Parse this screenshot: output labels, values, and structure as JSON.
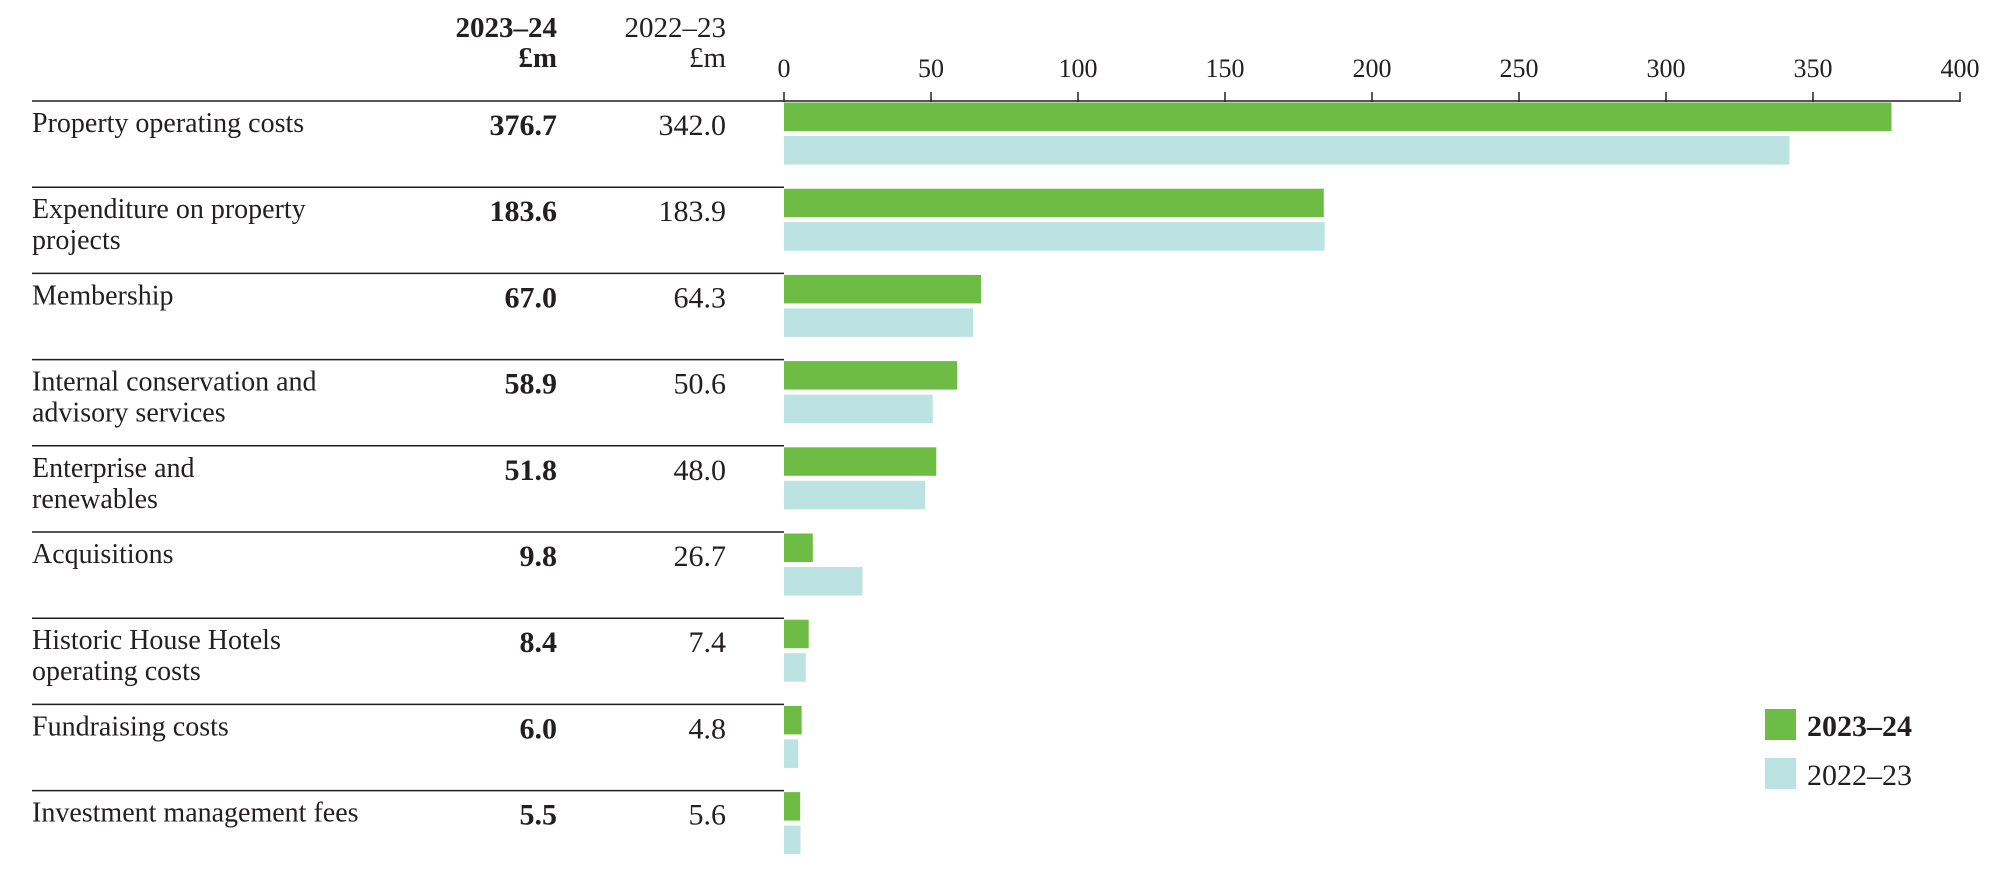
{
  "header": {
    "current_year": "2023–24",
    "current_unit": "£m",
    "previous_year": "2022–23",
    "previous_unit": "£m"
  },
  "colors": {
    "current": "#6dbd45",
    "previous": "#bbe3e2",
    "rule": "#231f20"
  },
  "legend": {
    "current": "2023–24",
    "previous": "2022–23",
    "placement": "bottom-right"
  },
  "chart_data": {
    "type": "bar",
    "orientation": "horizontal",
    "xlim": [
      0,
      400
    ],
    "ticks": [
      "0",
      "50",
      "100",
      "150",
      "200",
      "250",
      "300",
      "350",
      "400"
    ],
    "categories": [
      [
        "Property operating costs"
      ],
      [
        "Expenditure on property",
        "projects"
      ],
      [
        "Membership"
      ],
      [
        "Internal conservation and",
        "advisory services"
      ],
      [
        "Enterprise and",
        "renewables"
      ],
      [
        "Acquisitions"
      ],
      [
        "Historic House Hotels",
        "operating costs"
      ],
      [
        "Fundraising costs"
      ],
      [
        "Investment management fees"
      ]
    ],
    "series": [
      {
        "name": "2023–24",
        "values": [
          376.7,
          183.6,
          67.0,
          58.9,
          51.8,
          9.8,
          8.4,
          6.0,
          5.5
        ],
        "labels": [
          "376.7",
          "183.6",
          "67.0",
          "58.9",
          "51.8",
          "9.8",
          "8.4",
          "6.0",
          "5.5"
        ]
      },
      {
        "name": "2022–23",
        "values": [
          342.0,
          183.9,
          64.3,
          50.6,
          48.0,
          26.7,
          7.4,
          4.8,
          5.6
        ],
        "labels": [
          "342.0",
          "183.9",
          "64.3",
          "50.6",
          "48.0",
          "26.7",
          "7.4",
          "4.8",
          "5.6"
        ]
      }
    ]
  }
}
